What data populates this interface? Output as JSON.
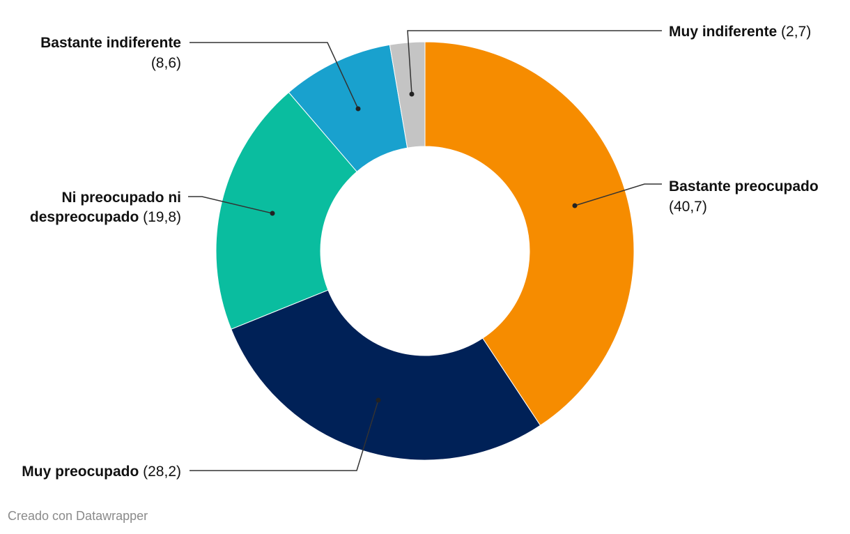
{
  "chart_data": {
    "type": "pie",
    "donut": true,
    "categories": [
      "Bastante preocupado",
      "Muy preocupado",
      "Ni preocupado ni despreocupado",
      "Bastante indiferente",
      "Muy indiferente"
    ],
    "values": [
      40.7,
      28.2,
      19.8,
      8.6,
      2.7
    ],
    "value_labels": [
      "40,7",
      "28,2",
      "19,8",
      "8,6",
      "2,7"
    ],
    "colors": [
      "#f68c00",
      "#002157",
      "#0abd9f",
      "#19a1ce",
      "#c4c4c4"
    ],
    "direction": "clockwise from top"
  },
  "credit": "Creado con Datawrapper"
}
